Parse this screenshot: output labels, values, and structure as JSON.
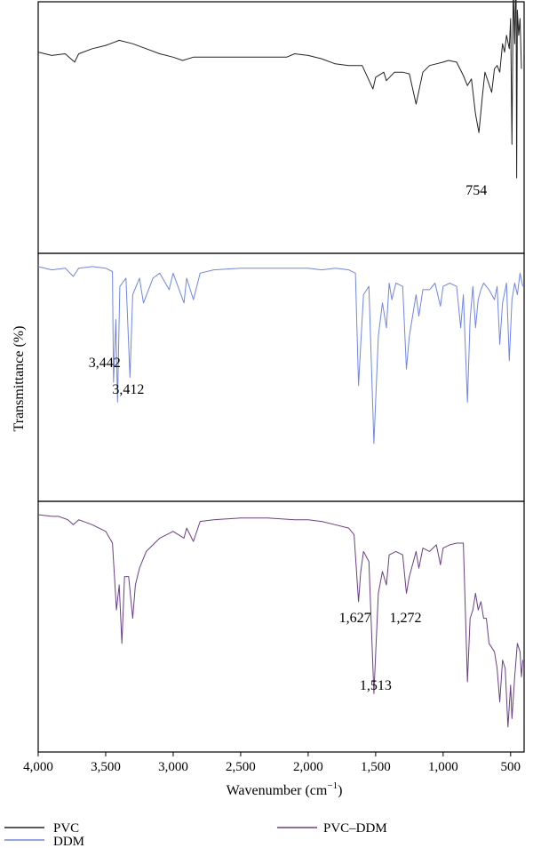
{
  "chart_data": {
    "type": "line",
    "xlabel_base": "Wavenumber (cm",
    "xlabel_sup": "−1",
    "xlabel_close": ")",
    "ylabel": "Transmittance (%)",
    "xlim": [
      4000,
      400
    ],
    "x_ticks": [
      4000,
      3500,
      3000,
      2500,
      2000,
      1500,
      1000,
      500
    ],
    "x_tick_labels": [
      "4,000",
      "3,500",
      "3,000",
      "2,500",
      "2,000",
      "1,500",
      "1,000",
      "500"
    ],
    "grid": false,
    "legend_position": "bottom",
    "series": [
      {
        "name": "PVC",
        "color": "#222222",
        "panel": 0,
        "values": [
          [
            4000,
            70
          ],
          [
            3900,
            68
          ],
          [
            3800,
            69
          ],
          [
            3730,
            64
          ],
          [
            3700,
            69
          ],
          [
            3600,
            72
          ],
          [
            3500,
            74
          ],
          [
            3400,
            77
          ],
          [
            3300,
            75
          ],
          [
            3200,
            72
          ],
          [
            3100,
            69
          ],
          [
            3000,
            67
          ],
          [
            2930,
            65
          ],
          [
            2850,
            67
          ],
          [
            2700,
            67
          ],
          [
            2500,
            67
          ],
          [
            2300,
            67
          ],
          [
            2160,
            67
          ],
          [
            2100,
            69
          ],
          [
            2000,
            68
          ],
          [
            1900,
            66
          ],
          [
            1800,
            63
          ],
          [
            1700,
            62
          ],
          [
            1600,
            62
          ],
          [
            1520,
            48
          ],
          [
            1500,
            55
          ],
          [
            1440,
            58
          ],
          [
            1420,
            53
          ],
          [
            1360,
            58
          ],
          [
            1300,
            58
          ],
          [
            1250,
            57
          ],
          [
            1200,
            39
          ],
          [
            1150,
            58
          ],
          [
            1100,
            62
          ],
          [
            1050,
            63
          ],
          [
            1000,
            64
          ],
          [
            960,
            65
          ],
          [
            900,
            64
          ],
          [
            850,
            56
          ],
          [
            820,
            50
          ],
          [
            790,
            54
          ],
          [
            760,
            33
          ],
          [
            735,
            22
          ],
          [
            710,
            43
          ],
          [
            690,
            58
          ],
          [
            640,
            46
          ],
          [
            620,
            60
          ],
          [
            600,
            62
          ],
          [
            580,
            58
          ],
          [
            560,
            75
          ],
          [
            545,
            70
          ],
          [
            530,
            80
          ],
          [
            510,
            72
          ],
          [
            500,
            90
          ],
          [
            490,
            15
          ],
          [
            480,
            110
          ],
          [
            470,
            75
          ],
          [
            460,
            120
          ],
          [
            455,
            -5
          ],
          [
            450,
            95
          ],
          [
            440,
            80
          ],
          [
            430,
            90
          ],
          [
            420,
            60
          ]
        ]
      },
      {
        "name": "DDM",
        "color": "#6f86e8",
        "panel": 1,
        "values": [
          [
            4000,
            92
          ],
          [
            3900,
            90
          ],
          [
            3800,
            91
          ],
          [
            3740,
            86
          ],
          [
            3700,
            91
          ],
          [
            3600,
            92
          ],
          [
            3500,
            91
          ],
          [
            3450,
            89
          ],
          [
            3442,
            22
          ],
          [
            3425,
            60
          ],
          [
            3412,
            10
          ],
          [
            3395,
            80
          ],
          [
            3350,
            85
          ],
          [
            3320,
            25
          ],
          [
            3300,
            75
          ],
          [
            3250,
            85
          ],
          [
            3220,
            70
          ],
          [
            3150,
            85
          ],
          [
            3100,
            88
          ],
          [
            3030,
            78
          ],
          [
            3000,
            88
          ],
          [
            2920,
            70
          ],
          [
            2900,
            85
          ],
          [
            2850,
            72
          ],
          [
            2800,
            88
          ],
          [
            2700,
            90
          ],
          [
            2500,
            91
          ],
          [
            2300,
            91
          ],
          [
            2100,
            91
          ],
          [
            2000,
            91
          ],
          [
            1900,
            90
          ],
          [
            1800,
            91
          ],
          [
            1700,
            90
          ],
          [
            1650,
            88
          ],
          [
            1627,
            20
          ],
          [
            1610,
            45
          ],
          [
            1590,
            75
          ],
          [
            1550,
            80
          ],
          [
            1513,
            -15
          ],
          [
            1480,
            50
          ],
          [
            1450,
            70
          ],
          [
            1420,
            55
          ],
          [
            1400,
            82
          ],
          [
            1380,
            72
          ],
          [
            1350,
            82
          ],
          [
            1300,
            80
          ],
          [
            1272,
            30
          ],
          [
            1250,
            50
          ],
          [
            1200,
            75
          ],
          [
            1180,
            62
          ],
          [
            1150,
            78
          ],
          [
            1100,
            78
          ],
          [
            1060,
            82
          ],
          [
            1020,
            68
          ],
          [
            1000,
            80
          ],
          [
            950,
            82
          ],
          [
            900,
            80
          ],
          [
            870,
            55
          ],
          [
            850,
            75
          ],
          [
            820,
            10
          ],
          [
            800,
            60
          ],
          [
            780,
            80
          ],
          [
            760,
            55
          ],
          [
            740,
            72
          ],
          [
            720,
            78
          ],
          [
            700,
            82
          ],
          [
            660,
            78
          ],
          [
            620,
            72
          ],
          [
            600,
            80
          ],
          [
            580,
            45
          ],
          [
            560,
            70
          ],
          [
            530,
            82
          ],
          [
            510,
            35
          ],
          [
            490,
            72
          ],
          [
            470,
            82
          ],
          [
            450,
            75
          ],
          [
            430,
            88
          ],
          [
            410,
            80
          ]
        ]
      },
      {
        "name": "PVC–DDM",
        "color": "#6a3f86",
        "panel": 2,
        "values": [
          [
            4000,
            92
          ],
          [
            3900,
            91
          ],
          [
            3850,
            91
          ],
          [
            3780,
            89
          ],
          [
            3740,
            86
          ],
          [
            3700,
            89
          ],
          [
            3600,
            86
          ],
          [
            3500,
            82
          ],
          [
            3450,
            75
          ],
          [
            3420,
            35
          ],
          [
            3400,
            50
          ],
          [
            3380,
            15
          ],
          [
            3360,
            55
          ],
          [
            3330,
            55
          ],
          [
            3300,
            30
          ],
          [
            3280,
            50
          ],
          [
            3250,
            60
          ],
          [
            3200,
            70
          ],
          [
            3100,
            78
          ],
          [
            3000,
            82
          ],
          [
            2920,
            78
          ],
          [
            2900,
            84
          ],
          [
            2850,
            76
          ],
          [
            2800,
            88
          ],
          [
            2700,
            89
          ],
          [
            2500,
            90
          ],
          [
            2300,
            90
          ],
          [
            2100,
            89
          ],
          [
            2000,
            89
          ],
          [
            1900,
            88
          ],
          [
            1800,
            86
          ],
          [
            1700,
            84
          ],
          [
            1660,
            80
          ],
          [
            1627,
            40
          ],
          [
            1610,
            58
          ],
          [
            1590,
            70
          ],
          [
            1550,
            64
          ],
          [
            1513,
            -15
          ],
          [
            1480,
            45
          ],
          [
            1450,
            58
          ],
          [
            1420,
            50
          ],
          [
            1400,
            68
          ],
          [
            1350,
            70
          ],
          [
            1300,
            68
          ],
          [
            1272,
            45
          ],
          [
            1250,
            55
          ],
          [
            1200,
            70
          ],
          [
            1180,
            60
          ],
          [
            1150,
            72
          ],
          [
            1100,
            70
          ],
          [
            1050,
            74
          ],
          [
            1020,
            62
          ],
          [
            1000,
            72
          ],
          [
            950,
            74
          ],
          [
            900,
            75
          ],
          [
            850,
            75
          ],
          [
            820,
            -8
          ],
          [
            800,
            30
          ],
          [
            780,
            35
          ],
          [
            760,
            45
          ],
          [
            740,
            35
          ],
          [
            720,
            40
          ],
          [
            700,
            30
          ],
          [
            680,
            30
          ],
          [
            660,
            15
          ],
          [
            620,
            10
          ],
          [
            600,
            0
          ],
          [
            580,
            -20
          ],
          [
            560,
            5
          ],
          [
            540,
            0
          ],
          [
            520,
            -35
          ],
          [
            500,
            -10
          ],
          [
            490,
            -30
          ],
          [
            470,
            -5
          ],
          [
            450,
            15
          ],
          [
            430,
            10
          ],
          [
            420,
            -5
          ],
          [
            410,
            5
          ]
        ]
      }
    ],
    "annotations": [
      {
        "text": "754",
        "panel": 0,
        "x": 754
      },
      {
        "text": "3,442",
        "panel": 1,
        "x": 3442
      },
      {
        "text": "3,412",
        "panel": 1,
        "x": 3412
      },
      {
        "text": "1,627",
        "panel": 2,
        "x": 1627
      },
      {
        "text": "1,272",
        "panel": 2,
        "x": 1272
      },
      {
        "text": "1,513",
        "panel": 2,
        "x": 1513
      }
    ],
    "legend": [
      "PVC",
      "DDM",
      "PVC–DDM"
    ]
  }
}
